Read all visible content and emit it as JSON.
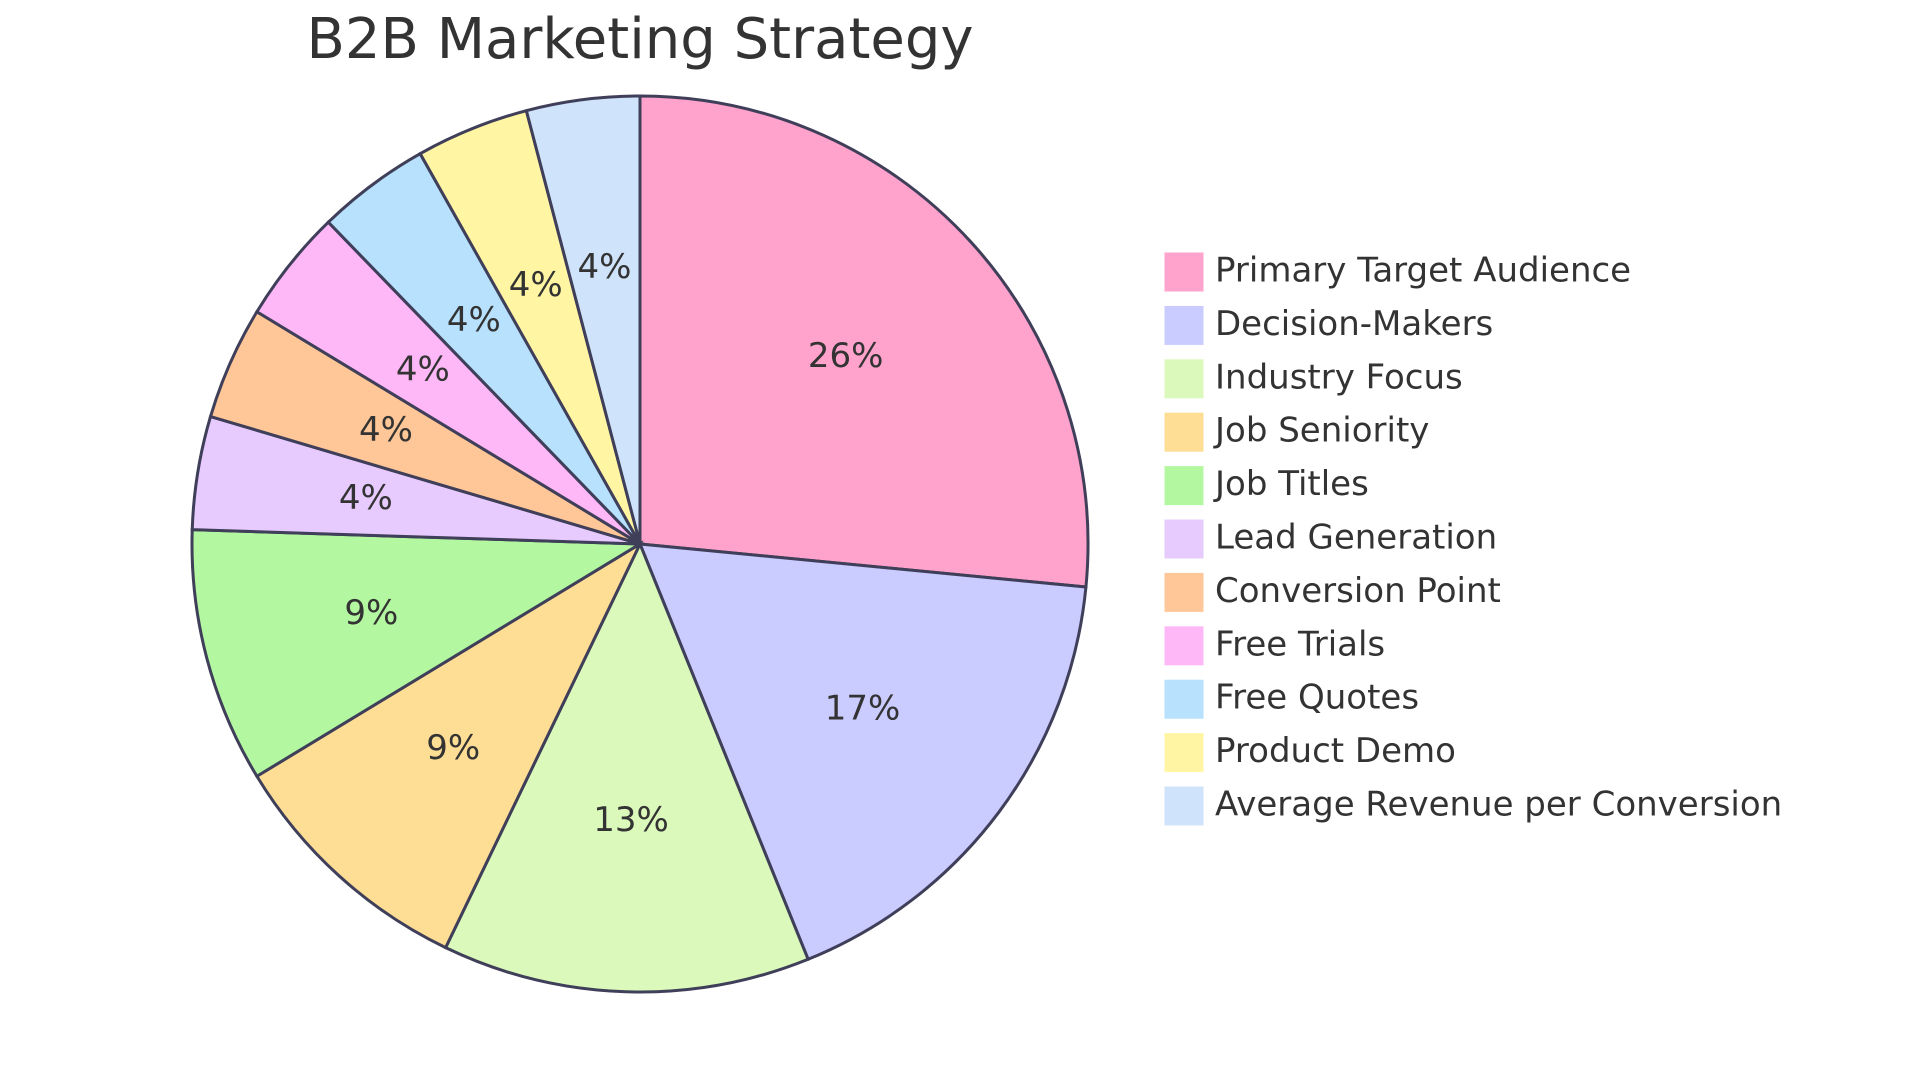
{
  "chart_data": {
    "type": "pie",
    "title": "B2B Marketing Strategy",
    "categories": [
      "Primary Target Audience",
      "Decision-Makers",
      "Industry Focus",
      "Job Seniority",
      "Job Titles",
      "Lead Generation",
      "Conversion Point",
      "Free Trials",
      "Free Quotes",
      "Product Demo",
      "Average Revenue per Conversion"
    ],
    "values": [
      26,
      17,
      13,
      9,
      9,
      4,
      4,
      4,
      4,
      4,
      4
    ],
    "labels": [
      "26%",
      "17%",
      "13%",
      "9%",
      "9%",
      "4%",
      "4%",
      "4%",
      "4%",
      "4%",
      "4%"
    ],
    "colors": [
      "#ffa3cc",
      "#cacbff",
      "#dbf9bb",
      "#fedd95",
      "#b3f8a0",
      "#e8cbfe",
      "#ffc697",
      "#feb8f7",
      "#b7e1fd",
      "#fff5a3",
      "#cfe3fb"
    ],
    "legend_position": "right",
    "start_angle": "12 o'clock",
    "direction": "clockwise"
  }
}
